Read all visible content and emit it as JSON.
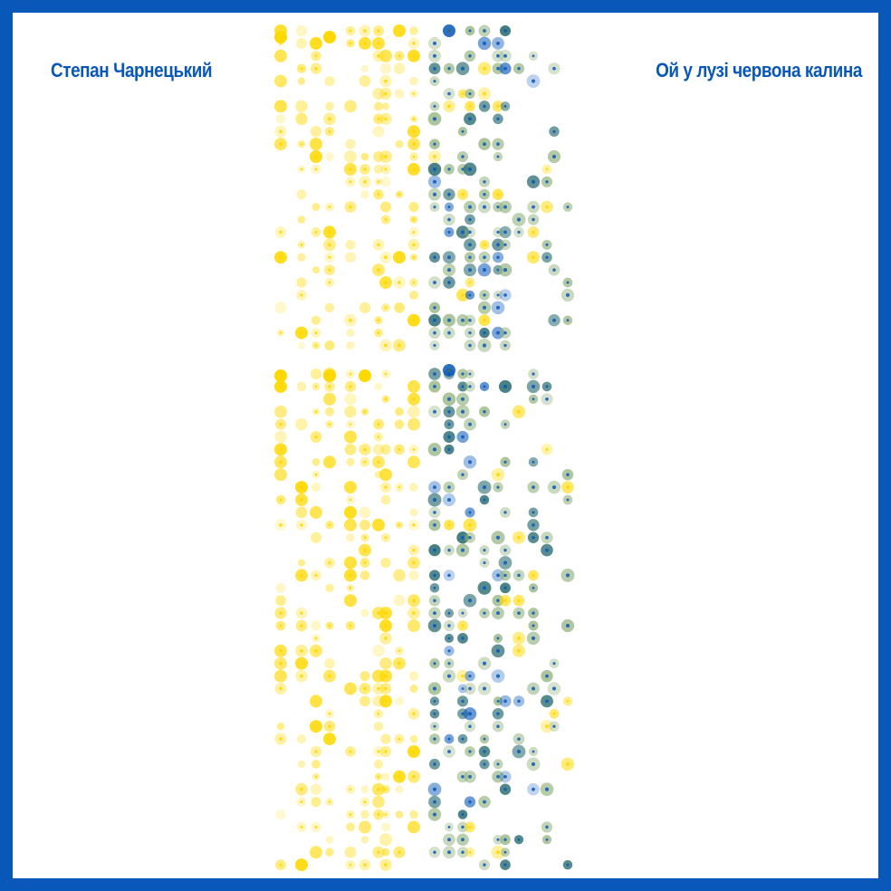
{
  "composer": "Степан Чарнецький",
  "song_title": "Ой у лузі червона калина",
  "colors": {
    "border": "#0857b9",
    "text": "#0857b9",
    "yellow": "#ffd800",
    "blue": "#0857b9",
    "teal": "#2f6f73",
    "sage": "#8fb07a",
    "background": "#ffffff"
  }
}
